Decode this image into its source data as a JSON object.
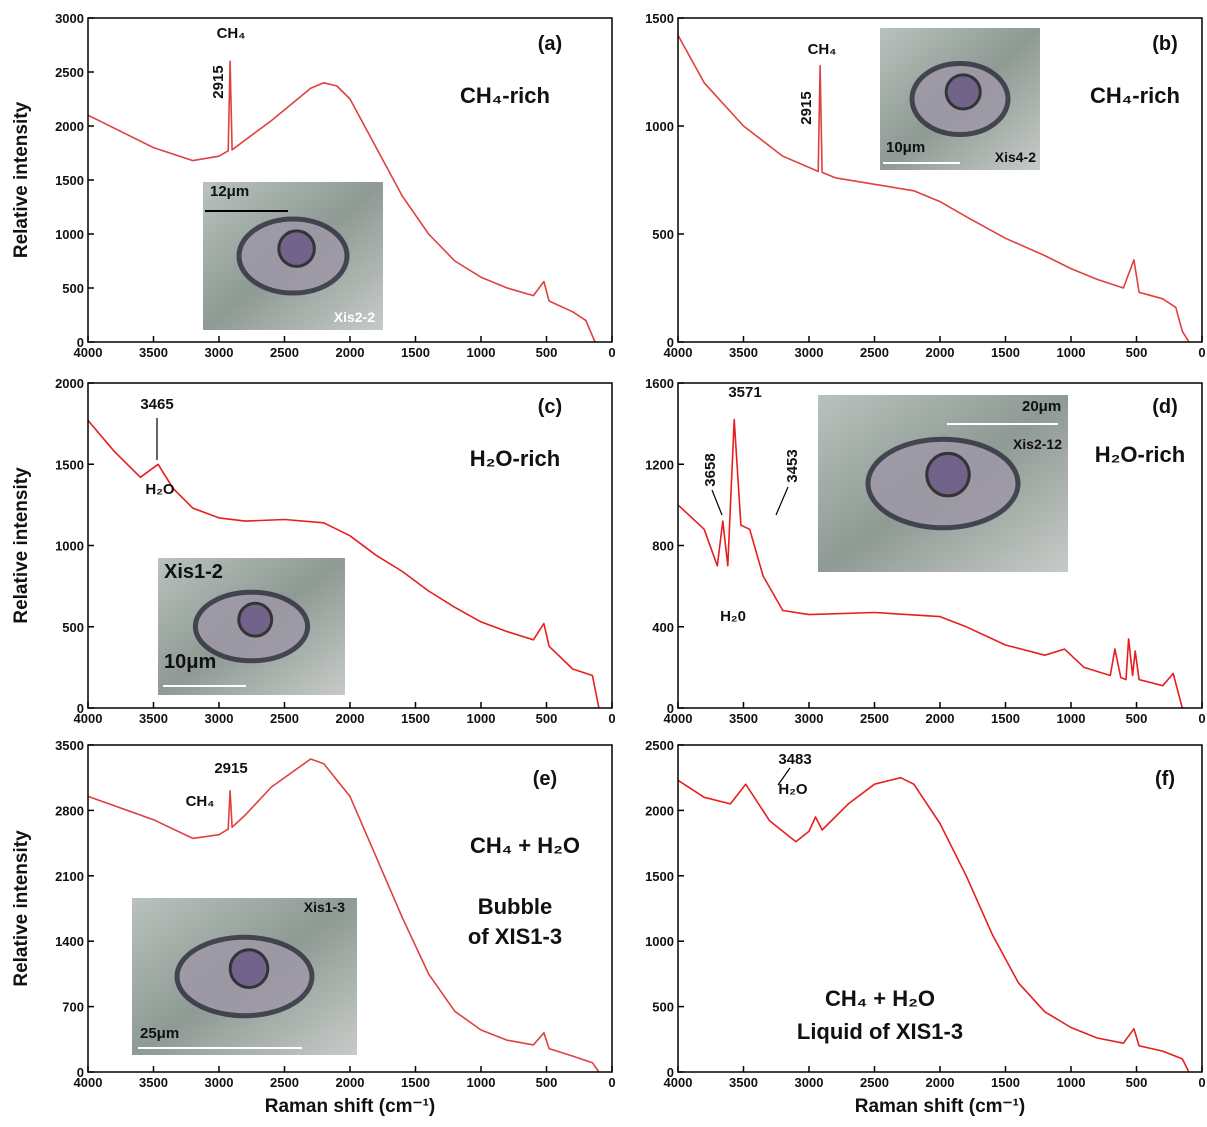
{
  "chart_data": [
    {
      "type": "line",
      "panel": "(a)",
      "annotation": [
        "CH₄-rich"
      ],
      "ylabel": "Relative intensity",
      "peaks": [
        2915
      ],
      "molecule": "CH₄",
      "inset": {
        "scale": "12μm",
        "label": "Xis2-2"
      },
      "color": "#e04040",
      "x": [
        4000,
        3500,
        3200,
        3000,
        2930,
        2915,
        2900,
        2600,
        2300,
        2200,
        2100,
        2000,
        1800,
        1600,
        1400,
        1200,
        1000,
        800,
        600,
        520,
        480,
        300,
        200,
        130
      ],
      "values": [
        2100,
        1800,
        1680,
        1720,
        1770,
        2600,
        1780,
        2050,
        2350,
        2400,
        2370,
        2250,
        1800,
        1350,
        1000,
        750,
        600,
        500,
        430,
        560,
        380,
        280,
        200,
        0
      ],
      "xlim": [
        4000,
        0
      ],
      "xticks": [
        4000,
        3500,
        3000,
        2500,
        2000,
        1500,
        1000,
        500,
        0
      ],
      "ylim": [
        0,
        3000
      ],
      "yticks": [
        0,
        500,
        1000,
        1500,
        2000,
        2500,
        3000
      ]
    },
    {
      "type": "line",
      "panel": "(b)",
      "annotation": [
        "CH₄-rich"
      ],
      "peaks": [
        2915
      ],
      "molecule": "CH₄",
      "inset": {
        "scale": "10μm",
        "label": "Xis4-2"
      },
      "color": "#e04040",
      "x": [
        4000,
        3800,
        3500,
        3200,
        2930,
        2915,
        2900,
        2800,
        2500,
        2200,
        2000,
        1800,
        1500,
        1200,
        1000,
        800,
        600,
        520,
        480,
        300,
        200,
        150,
        100
      ],
      "values": [
        1420,
        1200,
        1000,
        860,
        790,
        1280,
        785,
        760,
        730,
        700,
        650,
        580,
        480,
        400,
        340,
        290,
        250,
        380,
        230,
        200,
        160,
        50,
        0
      ],
      "xlim": [
        4000,
        0
      ],
      "xticks": [
        4000,
        3500,
        3000,
        2500,
        2000,
        1500,
        1000,
        500,
        0
      ],
      "ylim": [
        0,
        1500
      ],
      "yticks": [
        0,
        500,
        1000,
        1500
      ]
    },
    {
      "type": "line",
      "panel": "(c)",
      "annotation": [
        "H₂O-rich"
      ],
      "ylabel": "Relative intensity",
      "peaks": [
        3465
      ],
      "molecule": "H₂O",
      "inset": {
        "scale": "10μm",
        "label": "Xis1-2"
      },
      "color": "#e81e1e",
      "x": [
        4000,
        3800,
        3600,
        3465,
        3350,
        3200,
        3000,
        2800,
        2500,
        2200,
        2000,
        1800,
        1600,
        1400,
        1200,
        1000,
        800,
        600,
        520,
        480,
        300,
        150,
        100
      ],
      "values": [
        1770,
        1580,
        1420,
        1500,
        1350,
        1230,
        1170,
        1150,
        1160,
        1140,
        1060,
        940,
        840,
        720,
        620,
        530,
        470,
        420,
        520,
        380,
        240,
        200,
        0
      ],
      "xlim": [
        4000,
        0
      ],
      "xticks": [
        4000,
        3500,
        3000,
        2500,
        2000,
        1500,
        1000,
        500,
        0
      ],
      "ylim": [
        0,
        2000
      ],
      "yticks": [
        0,
        500,
        1000,
        1500,
        2000
      ]
    },
    {
      "type": "line",
      "panel": "(d)",
      "annotation": [
        "H₂O-rich"
      ],
      "peaks": [
        3571,
        3658,
        3453
      ],
      "molecule": "H₂0",
      "inset": {
        "scale": "20μm",
        "label": "Xis2-12"
      },
      "color": "#e81e1e",
      "x": [
        4000,
        3800,
        3700,
        3658,
        3620,
        3571,
        3520,
        3453,
        3350,
        3200,
        3000,
        2500,
        2000,
        1800,
        1500,
        1200,
        1050,
        900,
        700,
        665,
        620,
        580,
        560,
        530,
        510,
        480,
        300,
        220,
        150
      ],
      "values": [
        1000,
        880,
        700,
        920,
        700,
        1420,
        900,
        880,
        650,
        480,
        460,
        470,
        450,
        400,
        310,
        260,
        290,
        200,
        160,
        290,
        150,
        140,
        340,
        160,
        280,
        140,
        110,
        170,
        0
      ],
      "xlim": [
        4000,
        0
      ],
      "xticks": [
        4000,
        3500,
        3000,
        2500,
        2000,
        1500,
        1000,
        500,
        0
      ],
      "ylim": [
        0,
        1600
      ],
      "yticks": [
        0,
        400,
        800,
        1200,
        1600
      ]
    },
    {
      "type": "line",
      "panel": "(e)",
      "annotation": [
        "CH₄ + H₂O",
        "Bubble",
        "of XIS1-3"
      ],
      "ylabel": "Relative intensity",
      "xlabel": "Raman shift (cm⁻¹)",
      "peaks": [
        2915
      ],
      "molecule": "CH₄",
      "inset": {
        "scale": "25μm",
        "label": "Xis1-3"
      },
      "color": "#e04040",
      "x": [
        4000,
        3500,
        3200,
        3000,
        2930,
        2915,
        2900,
        2800,
        2600,
        2300,
        2200,
        2000,
        1800,
        1600,
        1400,
        1200,
        1000,
        800,
        600,
        520,
        480,
        300,
        150,
        100
      ],
      "values": [
        2950,
        2700,
        2500,
        2540,
        2600,
        3010,
        2620,
        2750,
        3050,
        3350,
        3300,
        2950,
        2300,
        1650,
        1050,
        650,
        450,
        340,
        290,
        420,
        250,
        170,
        100,
        0
      ],
      "xlim": [
        4000,
        0
      ],
      "xticks": [
        4000,
        3500,
        3000,
        2500,
        2000,
        1500,
        1000,
        500,
        0
      ],
      "ylim": [
        0,
        3500
      ],
      "yticks": [
        0,
        700,
        1400,
        2100,
        2800,
        3500
      ]
    },
    {
      "type": "line",
      "panel": "(f)",
      "annotation": [
        "CH₄ + H₂O",
        "Liquid of XIS1-3"
      ],
      "xlabel": "Raman shift (cm⁻¹)",
      "peaks": [
        3483
      ],
      "molecule": "H₂O",
      "color": "#e81e1e",
      "x": [
        4000,
        3800,
        3600,
        3483,
        3300,
        3100,
        3000,
        2950,
        2900,
        2700,
        2500,
        2300,
        2200,
        2000,
        1800,
        1600,
        1400,
        1200,
        1000,
        800,
        600,
        520,
        480,
        300,
        150,
        100
      ],
      "values": [
        2230,
        2100,
        2050,
        2200,
        1920,
        1760,
        1840,
        1950,
        1850,
        2050,
        2200,
        2250,
        2200,
        1900,
        1500,
        1050,
        680,
        460,
        340,
        260,
        220,
        330,
        200,
        160,
        100,
        0
      ],
      "xlim": [
        4000,
        0
      ],
      "xticks": [
        4000,
        3500,
        3000,
        2500,
        2000,
        1500,
        1000,
        500,
        0
      ],
      "ylim": [
        0,
        2500
      ],
      "yticks": [
        0,
        500,
        1000,
        1500,
        2000,
        2500
      ]
    }
  ]
}
